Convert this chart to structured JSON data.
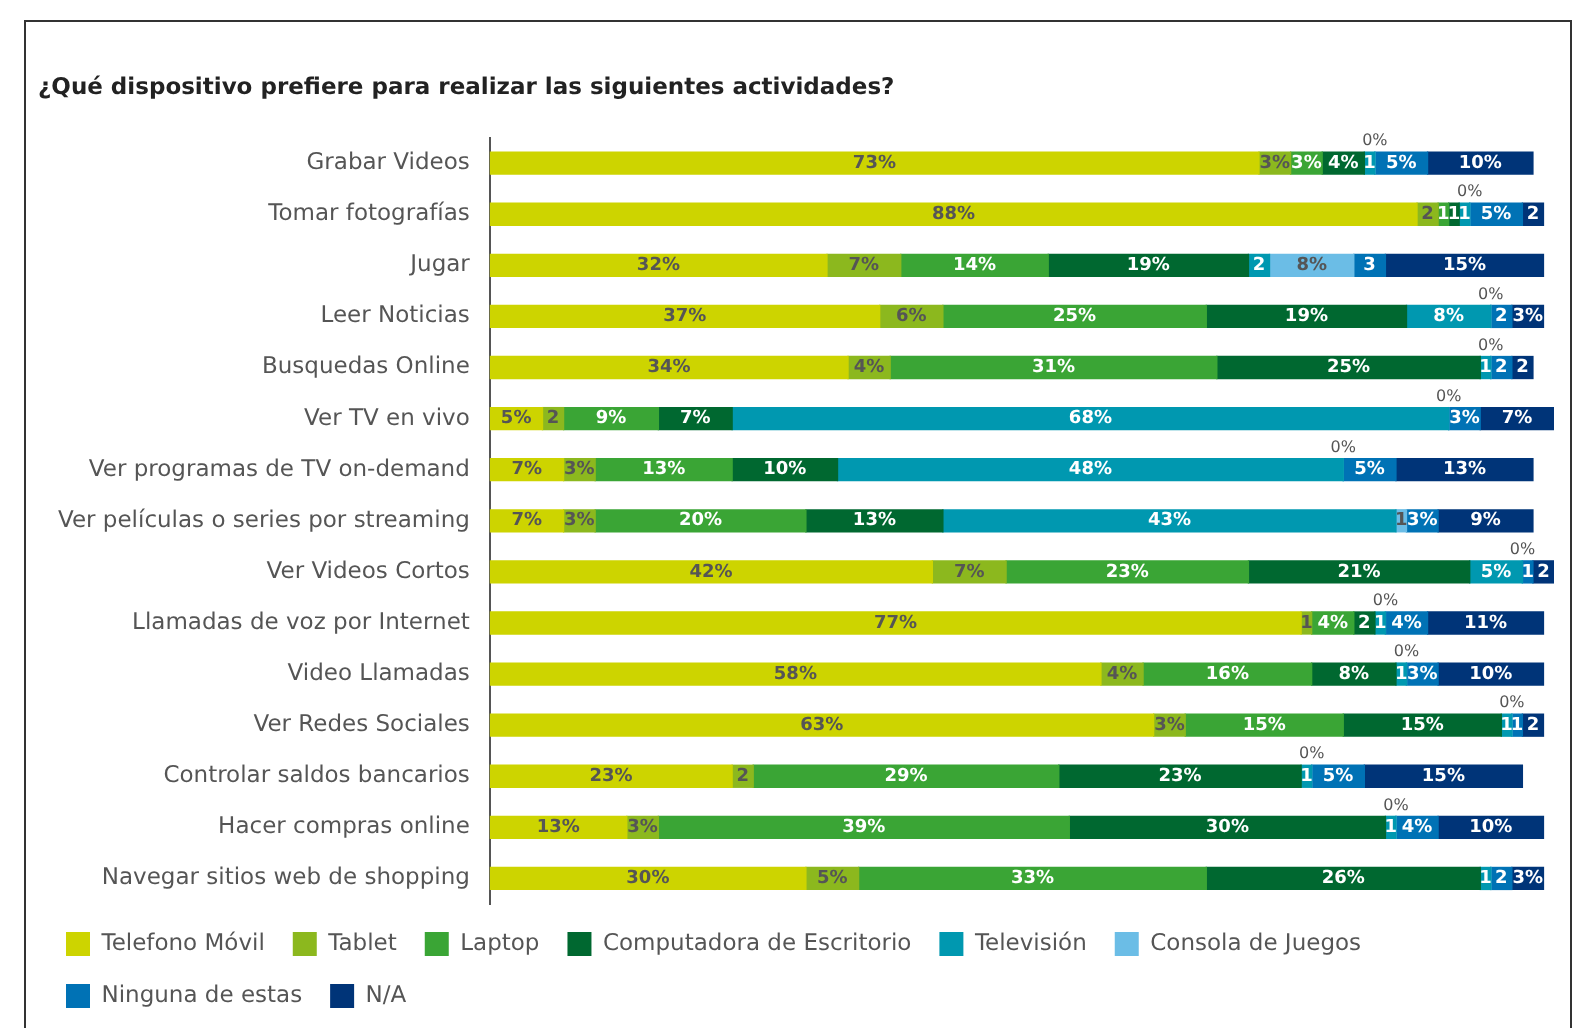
{
  "chart_data": {
    "type": "bar",
    "orientation": "horizontal",
    "stacked": true,
    "title": "¿Qué dispositivo prefiere para realizar las siguientes actividades?",
    "categories": [
      "Grabar Videos",
      "Tomar fotografías",
      "Jugar",
      "Leer Noticias",
      "Busquedas Online",
      "Ver TV en vivo",
      "Ver programas de TV on-demand",
      "Ver películas o series por streaming",
      "Ver Videos Cortos",
      "Llamadas de voz por Internet",
      "Video Llamadas",
      "Ver Redes Sociales",
      "Controlar saldos bancarios",
      "Hacer compras online",
      "Navegar sitios web de shopping"
    ],
    "series": [
      {
        "name": "Telefono Móvil",
        "color": "#cdd400",
        "values": [
          73,
          88,
          32,
          37,
          34,
          5,
          7,
          7,
          42,
          77,
          58,
          63,
          23,
          13,
          30
        ],
        "value_labels": [
          "73%",
          "88%",
          "32%",
          "37%",
          "34%",
          "5%",
          "7%",
          "7%",
          "42%",
          "77%",
          "58%",
          "63%",
          "23%",
          "13%",
          "30%"
        ]
      },
      {
        "name": "Tablet",
        "color": "#8cb81e",
        "values": [
          3,
          2,
          7,
          6,
          4,
          2,
          3,
          3,
          7,
          1,
          4,
          3,
          2,
          3,
          5
        ],
        "value_labels": [
          "3%",
          "2",
          "7%",
          "6%",
          "4%",
          "2",
          "3%",
          "3%",
          "7%",
          "1",
          "4%",
          "3%",
          "2",
          "3%",
          "5%"
        ]
      },
      {
        "name": "Laptop",
        "color": "#3aa535",
        "values": [
          3,
          1,
          14,
          25,
          31,
          9,
          13,
          20,
          23,
          4,
          16,
          15,
          29,
          39,
          33
        ],
        "value_labels": [
          "3%",
          "1",
          "14%",
          "25%",
          "31%",
          "9%",
          "13%",
          "20%",
          "23%",
          "4%",
          "16%",
          "15%",
          "29%",
          "39%",
          "33%"
        ]
      },
      {
        "name": "Computadora de Escritorio",
        "color": "#006830",
        "values": [
          4,
          1,
          19,
          19,
          25,
          7,
          10,
          13,
          21,
          2,
          8,
          15,
          23,
          30,
          26
        ],
        "value_labels": [
          "4%",
          "1",
          "19%",
          "19%",
          "25%",
          "7%",
          "10%",
          "13%",
          "21%",
          "2",
          "8%",
          "15%",
          "23%",
          "30%",
          "26%"
        ]
      },
      {
        "name": "Televisión",
        "color": "#0098b0",
        "values": [
          1,
          1,
          2,
          8,
          1,
          68,
          48,
          43,
          5,
          1,
          1,
          1,
          1,
          1,
          1
        ],
        "value_labels": [
          "1",
          "1",
          "2",
          "8%",
          "1",
          "68%",
          "48%",
          "43%",
          "5%",
          "1",
          "1",
          "1",
          "1",
          "1",
          "1"
        ]
      },
      {
        "name": "Consola de Juegos",
        "color": "#6bbde6",
        "values": [
          0,
          0,
          8,
          0,
          0,
          0,
          0,
          1,
          0,
          0,
          0,
          0,
          0,
          0,
          0
        ],
        "value_labels": [
          "0%",
          "0%",
          "8%",
          "0%",
          "0%",
          "0%",
          "0%",
          "1",
          "0%",
          "0%",
          "0%",
          "0%",
          "0%",
          "0%",
          null
        ]
      },
      {
        "name": "Ninguna de estas",
        "color": "#0072b5",
        "values": [
          5,
          5,
          3,
          2,
          2,
          3,
          5,
          3,
          1,
          4,
          3,
          1,
          5,
          4,
          2
        ],
        "value_labels": [
          "5%",
          "5%",
          "3",
          "2",
          "2",
          "3%",
          "5%",
          "3%",
          "1",
          "4%",
          "3%",
          "1",
          "5%",
          "4%",
          "2"
        ]
      },
      {
        "name": "N/A",
        "color": "#003478",
        "values": [
          10,
          2,
          15,
          3,
          2,
          7,
          13,
          9,
          2,
          11,
          10,
          2,
          15,
          10,
          3
        ],
        "value_labels": [
          "10%",
          "2",
          "15%",
          "3%",
          "2",
          "7%",
          "13%",
          "9%",
          "2",
          "11%",
          "10%",
          "2",
          "15%",
          "10%",
          "3%"
        ]
      }
    ],
    "xlim": [
      0,
      101
    ],
    "tick_labels": "y",
    "legend": "bottom"
  }
}
